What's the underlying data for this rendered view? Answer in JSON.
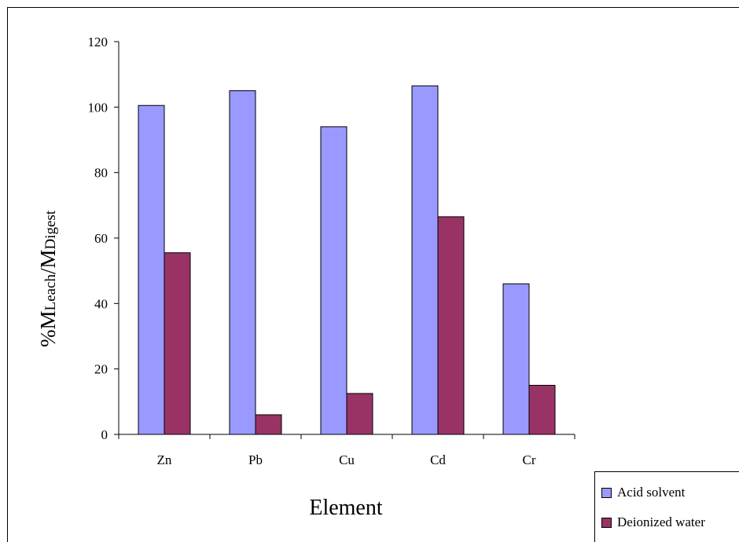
{
  "chart_data": {
    "type": "bar",
    "categories": [
      "Zn",
      "Pb",
      "Cu",
      "Cd",
      "Cr"
    ],
    "series": [
      {
        "name": "Acid solvent",
        "values": [
          100.5,
          105,
          94,
          106.5,
          46
        ],
        "color": "#9999ff"
      },
      {
        "name": "Deionized water",
        "values": [
          55.5,
          6,
          12.5,
          66.5,
          15
        ],
        "color": "#993366"
      }
    ],
    "title": "",
    "xlabel": "Element",
    "ylabel": {
      "prefix": "%M",
      "sub1": "Leach",
      "mid": "/M",
      "sub2": "Digest"
    },
    "ylim": [
      0,
      120
    ],
    "yticks": [
      0,
      20,
      40,
      60,
      80,
      100,
      120
    ],
    "grid": false,
    "legend_position": "bottom-right"
  }
}
